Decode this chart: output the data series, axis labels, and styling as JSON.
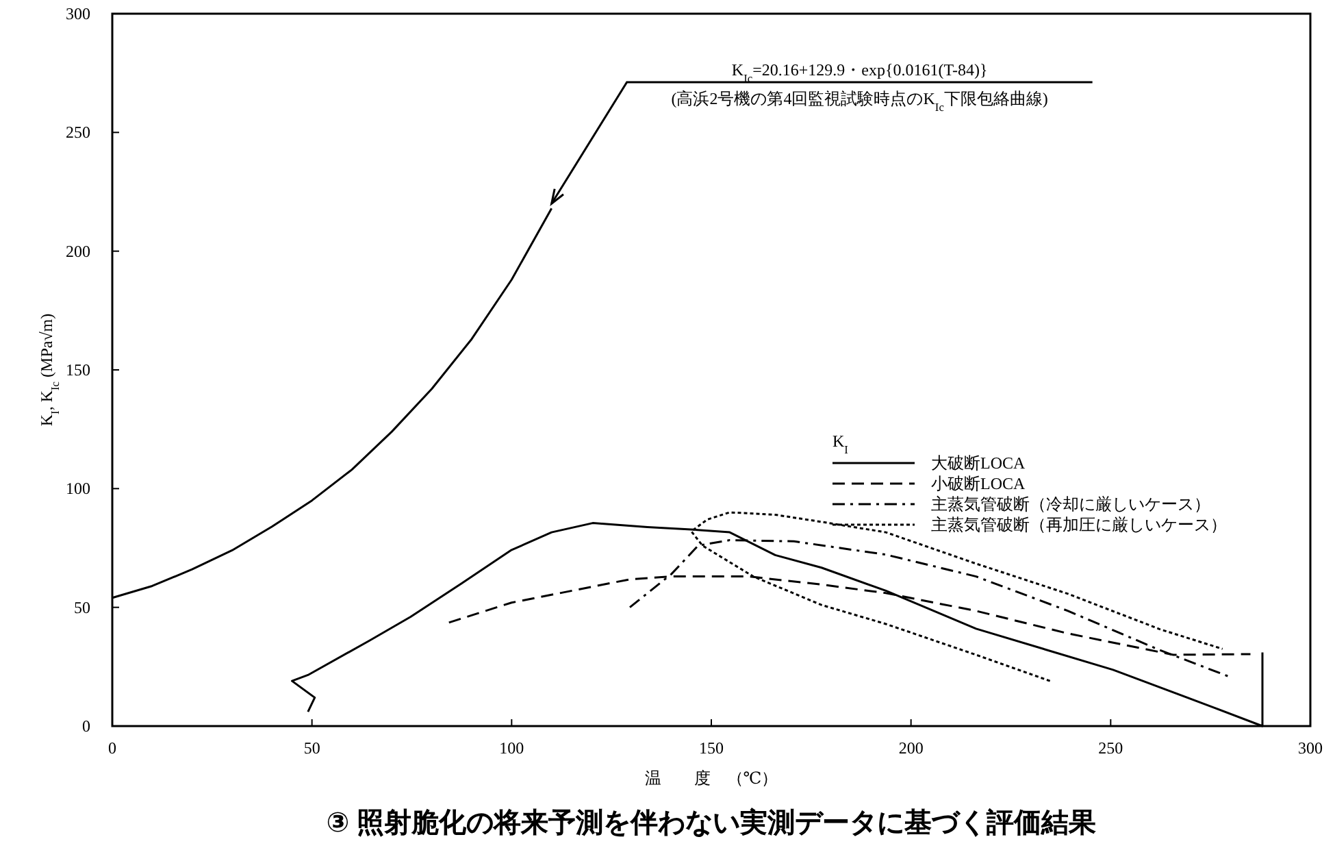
{
  "chart_data": {
    "type": "line",
    "xlabel": "温　　度　（℃）",
    "ylabel": "K$_{I}$, K$_{Ic}$ (MPa√m)",
    "legend_title": "K$_{I}$",
    "xlim": [
      0,
      300
    ],
    "xticks": [
      0,
      50,
      100,
      150,
      200,
      250,
      300
    ],
    "ylim": [
      0,
      300
    ],
    "yticks": [
      0,
      50,
      100,
      150,
      200,
      250,
      300
    ],
    "grid": false,
    "legend": "right",
    "series": [
      {
        "color": "#000000",
        "line_style": "solid",
        "x": [
          0,
          10,
          20,
          30,
          40,
          50,
          60,
          70,
          80,
          90,
          100,
          110
        ],
        "values": [
          54,
          59,
          66,
          74,
          84,
          95,
          108,
          124,
          142,
          163,
          188,
          218
        ]
      },
      {
        "name": "大破断LOCA",
        "color": "#000000",
        "line_style": "solid",
        "x": [
          49,
          50.7,
          45,
          49,
          64.4,
          74.7,
          87.4,
          99.8,
          110,
          120.3,
          134,
          145.7,
          154.6,
          166,
          177.6,
          193.7,
          216.3,
          250.6,
          276,
          288,
          288
        ],
        "values": [
          6,
          12,
          19,
          21.5,
          36,
          46,
          60,
          74,
          81.6,
          85.5,
          83.8,
          82.7,
          81.6,
          72,
          66.7,
          57,
          41,
          23.7,
          7.7,
          0,
          31
        ]
      },
      {
        "name": "小破断LOCA",
        "color": "#000000",
        "line_style": "dashed",
        "x": [
          84.3,
          100,
          129.6,
          140,
          159.4,
          177.6,
          193.7,
          216.3,
          239.3,
          265.7,
          285
        ],
        "values": [
          43.6,
          52,
          61.8,
          63,
          63,
          59.6,
          56,
          48.5,
          39,
          30,
          30.3
        ]
      },
      {
        "name": "主蒸気管破断（冷却に厳しいケース）",
        "color": "#000000",
        "line_style": "dashdot",
        "x": [
          129.6,
          140,
          146.7,
          154.6,
          170.7,
          193.7,
          216.3,
          239.3,
          262.3,
          279.4
        ],
        "values": [
          50,
          64,
          76,
          78.3,
          77.8,
          72.2,
          63,
          48.5,
          32,
          21
        ]
      },
      {
        "name": "主蒸気管破断（再加圧に厳しいケース）",
        "color": "#000000",
        "line_style": "dotted",
        "x": [
          234.8,
          216.3,
          193.7,
          177.6,
          160.5,
          147.8,
          145,
          149,
          154.6,
          166,
          177.6,
          193.7,
          216.3,
          239.3,
          262.3,
          278
        ],
        "values": [
          19,
          30,
          43,
          51,
          63,
          76,
          82,
          87,
          90,
          89,
          86,
          81.6,
          68.4,
          55.7,
          40.8,
          32.5
        ]
      }
    ],
    "annotations": [
      {
        "text": "K$_{Ic}$=20.16+129.9・exp{0.0161(T-84)}",
        "x": 110,
        "y": 220
      },
      "(高浜2号機の第4回監視試験時点のK$_{Ic}$下限包絡曲線)",
      "③ 照射脆化の将来予測を伴わない実測データに基づく評価結果"
    ]
  }
}
